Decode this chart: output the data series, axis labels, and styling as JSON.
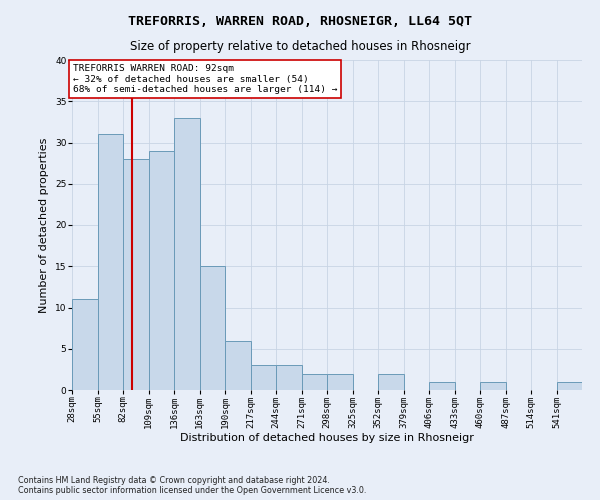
{
  "title": "TREFORRIS, WARREN ROAD, RHOSNEIGR, LL64 5QT",
  "subtitle": "Size of property relative to detached houses in Rhosneigr",
  "xlabel": "Distribution of detached houses by size in Rhosneigr",
  "ylabel": "Number of detached properties",
  "footnote": "Contains HM Land Registry data © Crown copyright and database right 2024.\nContains public sector information licensed under the Open Government Licence v3.0.",
  "bin_edges": [
    28,
    55,
    82,
    109,
    136,
    163,
    190,
    217,
    244,
    271,
    298,
    325,
    352,
    379,
    406,
    433,
    460,
    487,
    514,
    541,
    568
  ],
  "bar_heights": [
    11,
    31,
    28,
    29,
    33,
    15,
    6,
    3,
    3,
    2,
    2,
    0,
    2,
    0,
    1,
    0,
    1,
    0,
    0,
    1
  ],
  "bar_color": "#c8d8ea",
  "bar_edge_color": "#6a9ab8",
  "property_size": 92,
  "vline_color": "#cc0000",
  "annotation_text": "TREFORRIS WARREN ROAD: 92sqm\n← 32% of detached houses are smaller (54)\n68% of semi-detached houses are larger (114) →",
  "annotation_box_color": "#ffffff",
  "annotation_box_edge": "#cc0000",
  "ylim": [
    0,
    40
  ],
  "yticks": [
    0,
    5,
    10,
    15,
    20,
    25,
    30,
    35,
    40
  ],
  "grid_color": "#c8d4e4",
  "background_color": "#e8eef8",
  "title_fontsize": 9.5,
  "subtitle_fontsize": 8.5,
  "ylabel_fontsize": 8,
  "xlabel_fontsize": 8,
  "tick_fontsize": 6.5,
  "annotation_fontsize": 6.8,
  "footnote_fontsize": 5.8
}
